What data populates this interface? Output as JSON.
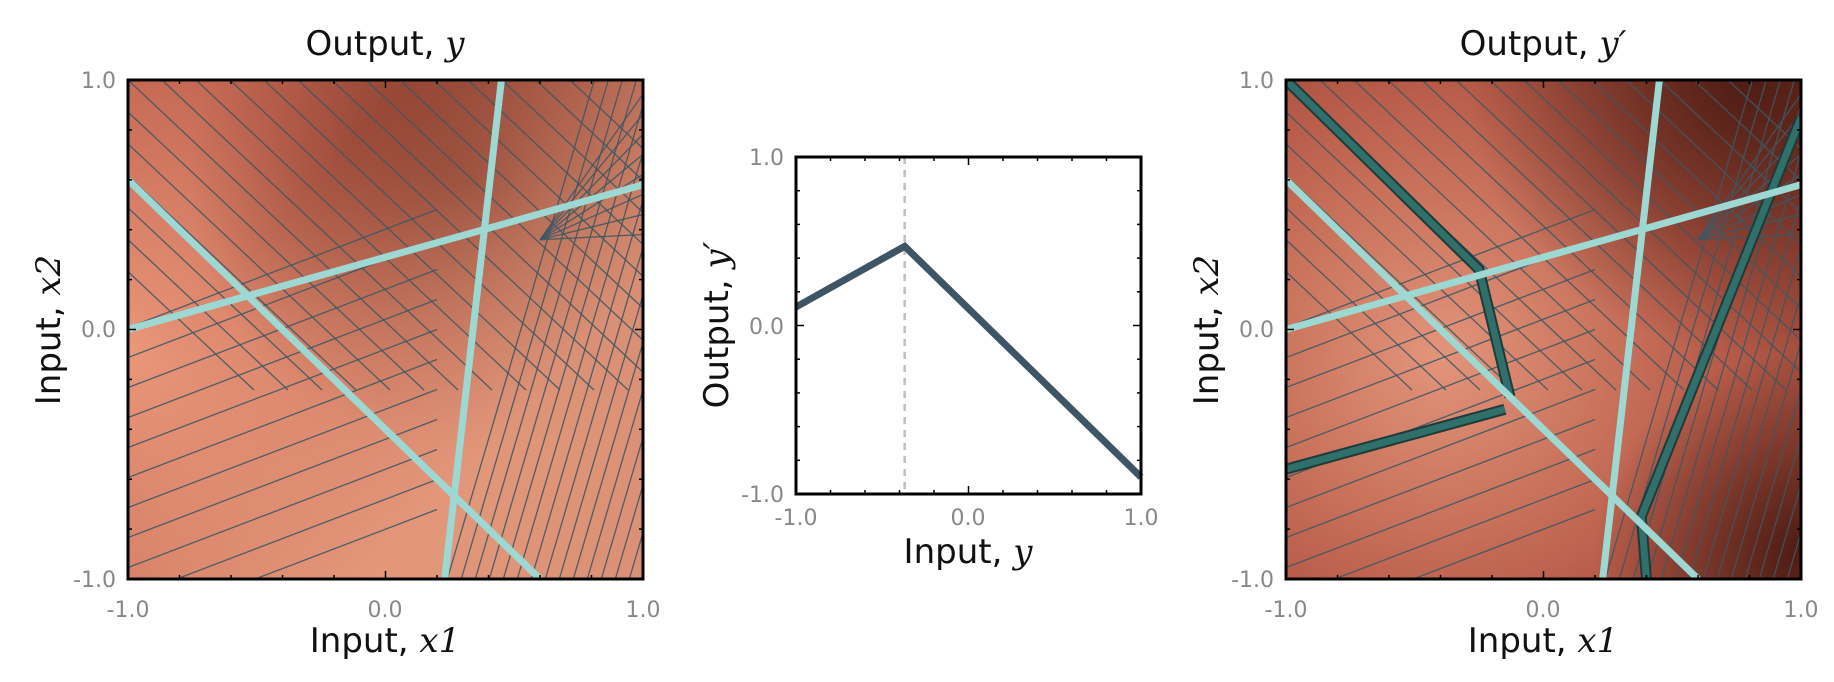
{
  "chart_data": [
    {
      "type": "heatmap",
      "title": "Output, y",
      "title_text": "Output,",
      "title_var": "y",
      "xlabel_text": "Input,",
      "xlabel_var": "x1",
      "ylabel_text": "Input,",
      "ylabel_var": "x2",
      "xlim": [
        -1.0,
        1.0
      ],
      "ylim": [
        -1.0,
        1.0
      ],
      "x_tick_labels": [
        "-1.0",
        "0.0",
        "1.0"
      ],
      "y_tick_labels": [
        "-1.0",
        "0.0",
        "1.0"
      ],
      "hidden_unit_boundaries": [
        {
          "points": [
            [
              -1.0,
              0.6
            ],
            [
              0.6,
              -1.0
            ]
          ]
        },
        {
          "points": [
            [
              -1.0,
              0.0
            ],
            [
              1.0,
              0.58
            ]
          ]
        },
        {
          "points": [
            [
              0.45,
              1.0
            ],
            [
              0.23,
              -1.0
            ]
          ]
        }
      ],
      "colors": {
        "boundary": "#9ed8d2",
        "contour": "#3f5663",
        "high": "#f3ad8d",
        "low": "#6d2a1e"
      }
    },
    {
      "type": "line",
      "xlabel_text": "Input,",
      "xlabel_var": "y",
      "ylabel_text": "Output,",
      "ylabel_var": "y′",
      "xlim": [
        -1.0,
        1.0
      ],
      "ylim": [
        -1.0,
        1.0
      ],
      "x_tick_labels": [
        "-1.0",
        "0.0",
        "1.0"
      ],
      "y_tick_labels": [
        "-1.0",
        "0.0",
        "1.0"
      ],
      "series": [
        {
          "x": [
            -1.0,
            -0.37,
            1.0
          ],
          "y": [
            0.11,
            0.47,
            -0.9
          ]
        }
      ],
      "vline_x": -0.37,
      "colors": {
        "line": "#3e5566",
        "vline": "#c0c0c0"
      }
    },
    {
      "type": "heatmap",
      "title": "Output, y′",
      "title_text": "Output,",
      "title_var": "y′",
      "xlabel_text": "Input,",
      "xlabel_var": "x1",
      "ylabel_text": "Input,",
      "ylabel_var": "x2",
      "xlim": [
        -1.0,
        1.0
      ],
      "ylim": [
        -1.0,
        1.0
      ],
      "x_tick_labels": [
        "-1.0",
        "0.0",
        "1.0"
      ],
      "y_tick_labels": [
        "-1.0",
        "0.0",
        "1.0"
      ],
      "hidden_unit_boundaries": [
        {
          "points": [
            [
              -1.0,
              0.6
            ],
            [
              0.6,
              -1.0
            ]
          ]
        },
        {
          "points": [
            [
              -1.0,
              0.0
            ],
            [
              1.0,
              0.58
            ]
          ]
        },
        {
          "points": [
            [
              0.45,
              1.0
            ],
            [
              0.23,
              -1.0
            ]
          ]
        }
      ],
      "highlight_contours": [
        {
          "points": [
            [
              -1.0,
              1.0
            ],
            [
              -0.25,
              0.24
            ],
            [
              -0.13,
              -0.27
            ]
          ]
        },
        {
          "points": [
            [
              -1.0,
              -0.56
            ],
            [
              -0.15,
              -0.32
            ]
          ]
        },
        {
          "points": [
            [
              1.0,
              0.85
            ],
            [
              0.38,
              -0.75
            ],
            [
              0.4,
              -1.0
            ]
          ]
        }
      ],
      "colors": {
        "boundary": "#9ed8d2",
        "contour": "#3f5663",
        "highlight": "#2f706a",
        "high": "#f3ad8d",
        "low": "#4a1a12"
      }
    }
  ]
}
